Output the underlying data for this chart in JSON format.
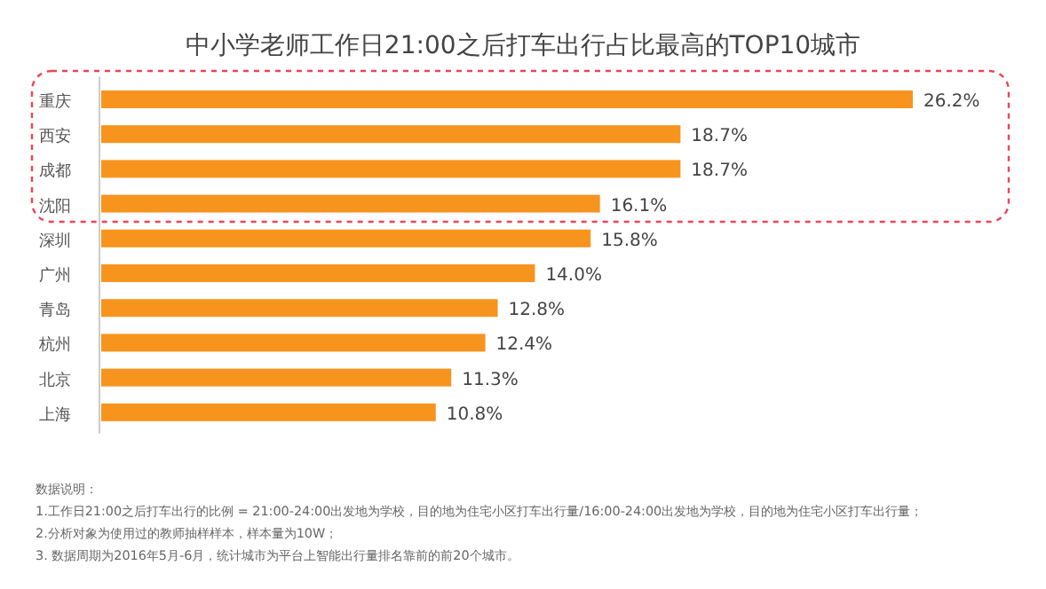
{
  "chart_data": {
    "type": "bar",
    "orientation": "horizontal",
    "relative": false,
    "title": "中小学老师工作日21:00之后打车出行占比最高的TOP10城市",
    "categories": [
      "重庆",
      "西安",
      "成都",
      "沈阳",
      "深圳",
      "广州",
      "青岛",
      "杭州",
      "北京",
      "上海"
    ],
    "values": [
      26.2,
      18.7,
      18.7,
      16.1,
      15.8,
      14.0,
      12.8,
      12.4,
      11.3,
      10.8
    ],
    "value_labels": [
      "26.2%",
      "18.7%",
      "18.7%",
      "16.1%",
      "15.8%",
      "14.0%",
      "12.8%",
      "12.4%",
      "11.3%",
      "10.8%"
    ],
    "color": "#f7941d",
    "annotations": [
      "数据说明：",
      "1.工作日21:00之后打车出行的比例 = 21:00-24:00出发地为学校，目的地为住宅小区打车出行量/16:00-24:00出发地为学校，目的地为住宅小区打车出行量；",
      "2.分析对象为使用过的教师抽样样本，样本量为10W；",
      "3. 数据周期为2016年5月-6月，统计城市为平台上智能出行量排名靠前的前20个城市。"
    ]
  }
}
